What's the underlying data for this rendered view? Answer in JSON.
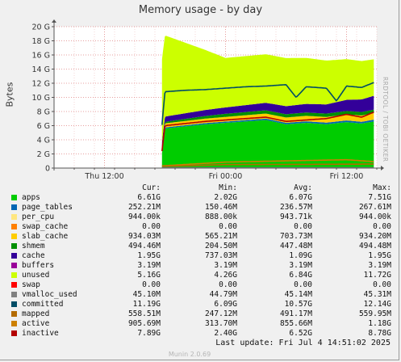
{
  "title": "Memory usage - by day",
  "side_label": "RRDTOOL / TOBI OETIKER",
  "footer": {
    "last_update": "Last update: Fri Jul  4 14:51:02 2025",
    "munin": "Munin 2.0.69"
  },
  "legend_headers": {
    "cur": "Cur:",
    "min": "Min:",
    "avg": "Avg:",
    "max": "Max:"
  },
  "legend": [
    {
      "name": "apps",
      "color": "#00cc00",
      "cur": "6.61G",
      "min": "2.02G",
      "avg": "6.07G",
      "max": "7.51G"
    },
    {
      "name": "page_tables",
      "color": "#0066b3",
      "cur": "252.21M",
      "min": "150.46M",
      "avg": "236.57M",
      "max": "267.61M"
    },
    {
      "name": "per_cpu",
      "color": "#ffe680",
      "cur": "944.00k",
      "min": "888.00k",
      "avg": "943.71k",
      "max": "944.00k"
    },
    {
      "name": "swap_cache",
      "color": "#ff8000",
      "cur": "0.00",
      "min": "0.00",
      "avg": "0.00",
      "max": "0.00"
    },
    {
      "name": "slab_cache",
      "color": "#ffcc00",
      "cur": "934.03M",
      "min": "565.21M",
      "avg": "703.73M",
      "max": "934.20M"
    },
    {
      "name": "shmem",
      "color": "#008f00",
      "cur": "494.46M",
      "min": "204.50M",
      "avg": "447.48M",
      "max": "494.48M"
    },
    {
      "name": "cache",
      "color": "#330099",
      "cur": "1.95G",
      "min": "737.03M",
      "avg": "1.09G",
      "max": "1.95G"
    },
    {
      "name": "buffers",
      "color": "#990099",
      "cur": "3.19M",
      "min": "3.19M",
      "avg": "3.19M",
      "max": "3.19M"
    },
    {
      "name": "unused",
      "color": "#ccff00",
      "cur": "5.16G",
      "min": "4.26G",
      "avg": "6.84G",
      "max": "11.72G"
    },
    {
      "name": "swap",
      "color": "#ff0000",
      "cur": "0.00",
      "min": "0.00",
      "avg": "0.00",
      "max": "0.00"
    },
    {
      "name": "vmalloc_used",
      "color": "#808080",
      "cur": "45.10M",
      "min": "44.79M",
      "avg": "45.14M",
      "max": "45.31M"
    },
    {
      "name": "committed",
      "color": "#004d66",
      "cur": "11.19G",
      "min": "6.09G",
      "avg": "10.57G",
      "max": "12.14G"
    },
    {
      "name": "mapped",
      "color": "#b36b00",
      "cur": "558.51M",
      "min": "247.12M",
      "avg": "491.17M",
      "max": "559.95M"
    },
    {
      "name": "active",
      "color": "#cc8000",
      "cur": "905.69M",
      "min": "313.70M",
      "avg": "855.66M",
      "max": "1.18G"
    },
    {
      "name": "inactive",
      "color": "#b30000",
      "cur": "7.89G",
      "min": "2.40G",
      "avg": "6.52G",
      "max": "8.78G"
    }
  ],
  "chart_data": {
    "type": "area",
    "title": "Memory usage - by day",
    "ylabel": "Bytes",
    "ylim": [
      0,
      20
    ],
    "y_unit": "G",
    "yticks": [
      "0",
      "2 G",
      "4 G",
      "6 G",
      "8 G",
      "10 G",
      "12 G",
      "14 G",
      "16 G",
      "18 G",
      "20 G"
    ],
    "xlim_hours": [
      -32,
      0
    ],
    "xticks": [
      {
        "label": "Thu 12:00",
        "hours": -27
      },
      {
        "label": "Fri 00:00",
        "hours": -15
      },
      {
        "label": "Fri 12:00",
        "hours": -3
      }
    ],
    "data_start_hours": -21.3,
    "grid": true,
    "stacked_series": [
      {
        "name": "apps",
        "color": "#00cc00",
        "points": [
          [
            -21.3,
            2.0
          ],
          [
            -21.0,
            5.6
          ],
          [
            -19.0,
            5.9
          ],
          [
            -17.0,
            6.2
          ],
          [
            -15.0,
            6.4
          ],
          [
            -13.0,
            6.6
          ],
          [
            -11.0,
            6.8
          ],
          [
            -9.0,
            6.2
          ],
          [
            -7.0,
            6.4
          ],
          [
            -5.0,
            6.2
          ],
          [
            -3.0,
            6.5
          ],
          [
            -1.5,
            6.3
          ],
          [
            -0.3,
            6.6
          ]
        ]
      },
      {
        "name": "page_tables",
        "color": "#0066b3",
        "points": [
          [
            -21.3,
            0.15
          ],
          [
            -0.3,
            0.25
          ]
        ]
      },
      {
        "name": "slab_cache",
        "color": "#ffcc00",
        "points": [
          [
            -21.3,
            0.57
          ],
          [
            -15.0,
            0.65
          ],
          [
            -5.0,
            0.8
          ],
          [
            -0.3,
            0.93
          ]
        ]
      },
      {
        "name": "shmem",
        "color": "#008f00",
        "points": [
          [
            -21.3,
            0.2
          ],
          [
            -15.0,
            0.45
          ],
          [
            -0.3,
            0.49
          ]
        ]
      },
      {
        "name": "cache",
        "color": "#330099",
        "points": [
          [
            -21.3,
            0.74
          ],
          [
            -15.0,
            0.9
          ],
          [
            -5.0,
            1.3
          ],
          [
            -0.3,
            1.95
          ]
        ]
      },
      {
        "name": "unused",
        "color": "#ccff00",
        "points": [
          [
            -21.3,
            11.7
          ],
          [
            -15.0,
            7.0
          ],
          [
            -9.0,
            6.8
          ],
          [
            -5.0,
            6.2
          ],
          [
            -0.3,
            5.16
          ]
        ]
      }
    ],
    "line_series": [
      {
        "name": "committed",
        "color": "#004d66",
        "points": [
          [
            -21.3,
            6.1
          ],
          [
            -21.0,
            10.8
          ],
          [
            -19.0,
            11.0
          ],
          [
            -17.0,
            11.1
          ],
          [
            -15.0,
            11.3
          ],
          [
            -13.0,
            11.5
          ],
          [
            -11.0,
            11.6
          ],
          [
            -9.0,
            11.8
          ],
          [
            -8.0,
            10.0
          ],
          [
            -7.0,
            11.5
          ],
          [
            -5.0,
            11.3
          ],
          [
            -4.0,
            9.5
          ],
          [
            -3.0,
            11.6
          ],
          [
            -1.5,
            11.4
          ],
          [
            -0.3,
            12.1
          ]
        ]
      },
      {
        "name": "inactive",
        "color": "#b30000",
        "points": [
          [
            -21.3,
            2.4
          ],
          [
            -21.0,
            6.0
          ],
          [
            -19.0,
            6.3
          ],
          [
            -17.0,
            6.6
          ],
          [
            -15.0,
            6.8
          ],
          [
            -13.0,
            7.0
          ],
          [
            -11.0,
            7.2
          ],
          [
            -9.0,
            6.6
          ],
          [
            -7.0,
            6.8
          ],
          [
            -5.0,
            7.0
          ],
          [
            -3.0,
            7.6
          ],
          [
            -1.5,
            7.2
          ],
          [
            -0.3,
            7.9
          ]
        ]
      },
      {
        "name": "active",
        "color": "#cc8000",
        "points": [
          [
            -21.3,
            0.31
          ],
          [
            -15.0,
            0.85
          ],
          [
            -3.0,
            1.18
          ],
          [
            -0.3,
            0.91
          ]
        ]
      },
      {
        "name": "mapped",
        "color": "#b36b00",
        "points": [
          [
            -21.3,
            0.25
          ],
          [
            -15.0,
            0.49
          ],
          [
            -0.3,
            0.56
          ]
        ]
      },
      {
        "name": "vmalloc_used",
        "color": "#808080",
        "points": [
          [
            -21.3,
            0.045
          ],
          [
            -0.3,
            0.045
          ]
        ]
      }
    ]
  }
}
